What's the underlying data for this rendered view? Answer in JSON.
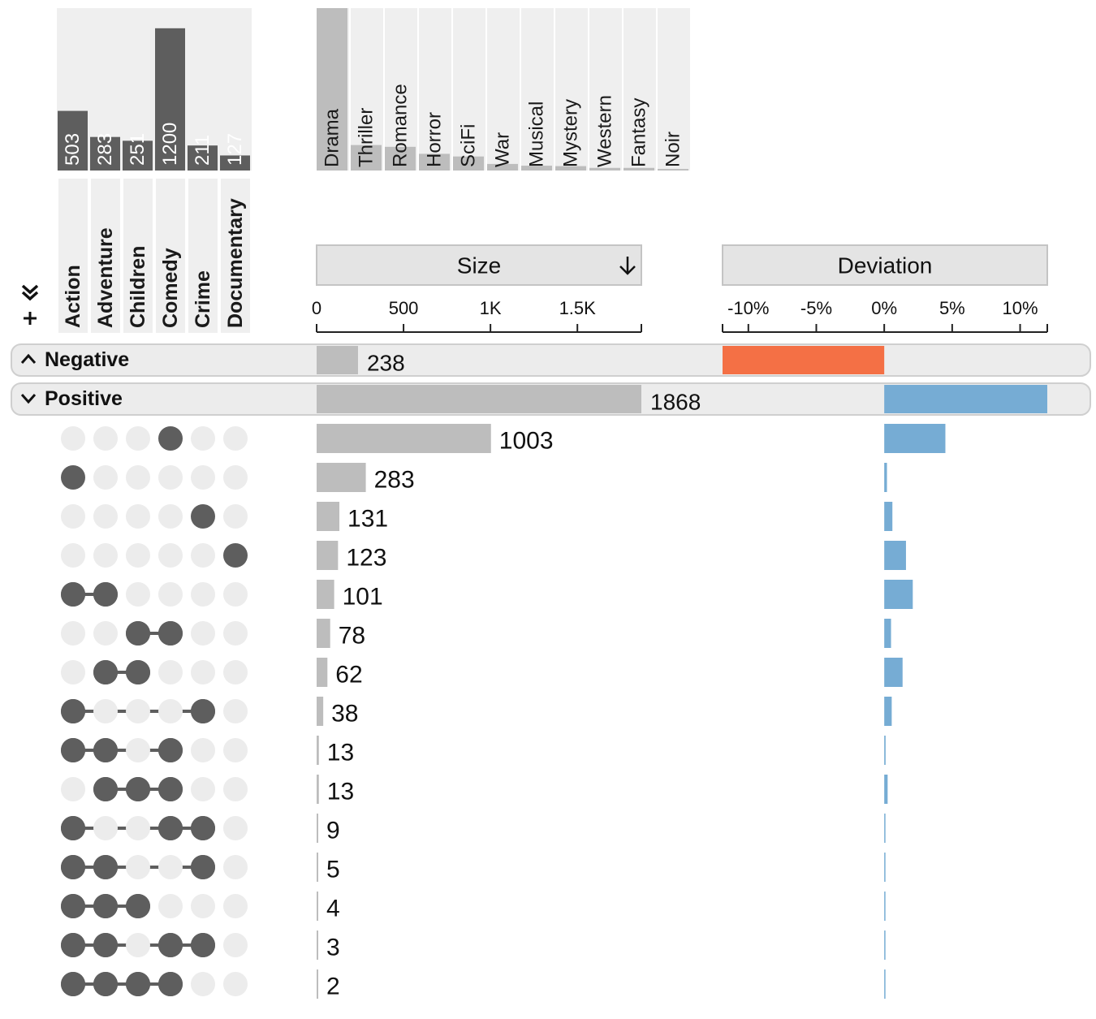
{
  "chart_data": {
    "type": "upset",
    "sets": {
      "names": [
        "Action",
        "Adventure",
        "Children",
        "Comedy",
        "Crime",
        "Documentary"
      ],
      "sizes": [
        503,
        283,
        251,
        1200,
        211,
        127
      ],
      "ylim": [
        0,
        1370
      ]
    },
    "unused_sets": {
      "names": [
        "Drama",
        "Thriller",
        "Romance",
        "Horror",
        "SciFi",
        "War",
        "Musical",
        "Mystery",
        "Western",
        "Fantasy",
        "Noir"
      ],
      "sizes": [
        1850,
        290,
        270,
        190,
        160,
        75,
        55,
        50,
        30,
        30,
        18
      ],
      "ylim": [
        0,
        1850
      ]
    },
    "columns": {
      "size": {
        "label": "Size",
        "sort_icon": "arrow-down-icon",
        "ticks": [
          "0",
          "500",
          "1K",
          "1.5K"
        ],
        "tick_values": [
          0,
          500,
          1000,
          1500
        ],
        "xlim": [
          0,
          1868
        ]
      },
      "deviation": {
        "label": "Deviation",
        "ticks": [
          "-10%",
          "-5%",
          "0%",
          "5%",
          "10%"
        ],
        "tick_values": [
          -10,
          -5,
          0,
          5,
          10
        ],
        "xlim": [
          -11.9,
          12.0
        ]
      }
    },
    "aggregates": [
      {
        "label": "Negative",
        "size": 238,
        "size_label": "238",
        "deviation": -11.9,
        "expanded": false,
        "icon": "chevron-up-icon"
      },
      {
        "label": "Positive",
        "size": 1868,
        "size_label": "1868",
        "deviation": 12.0,
        "expanded": true,
        "icon": "chevron-down-icon"
      }
    ],
    "intersections": [
      {
        "sets": [
          3
        ],
        "size": 1003,
        "label": "1003",
        "deviation": 4.5
      },
      {
        "sets": [
          0
        ],
        "size": 283,
        "label": "283",
        "deviation": 0.2
      },
      {
        "sets": [
          4
        ],
        "size": 131,
        "label": "131",
        "deviation": 0.6
      },
      {
        "sets": [
          5
        ],
        "size": 123,
        "label": "123",
        "deviation": 1.6
      },
      {
        "sets": [
          0,
          1
        ],
        "size": 101,
        "label": "101",
        "deviation": 2.1
      },
      {
        "sets": [
          2,
          3
        ],
        "size": 78,
        "label": "78",
        "deviation": 0.5
      },
      {
        "sets": [
          1,
          2
        ],
        "size": 62,
        "label": "62",
        "deviation": 1.35
      },
      {
        "sets": [
          0,
          4
        ],
        "size": 38,
        "label": "38",
        "deviation": 0.55
      },
      {
        "sets": [
          0,
          1,
          3
        ],
        "size": 13,
        "label": "13",
        "deviation": 0.1
      },
      {
        "sets": [
          1,
          2,
          3
        ],
        "size": 13,
        "label": "13",
        "deviation": 0.25
      },
      {
        "sets": [
          0,
          3,
          4
        ],
        "size": 9,
        "label": "9",
        "deviation": 0.05
      },
      {
        "sets": [
          0,
          1,
          4
        ],
        "size": 5,
        "label": "5",
        "deviation": 0.05
      },
      {
        "sets": [
          0,
          1,
          2
        ],
        "size": 4,
        "label": "4",
        "deviation": 0.05
      },
      {
        "sets": [
          0,
          1,
          3,
          4
        ],
        "size": 3,
        "label": "3",
        "deviation": 0.05
      },
      {
        "sets": [
          0,
          1,
          2,
          3
        ],
        "size": 2,
        "label": "2",
        "deviation": 0.05
      }
    ],
    "colors": {
      "set_bar": "#5e5e5e",
      "unused_bar": "#bdbdbd",
      "panel_bg": "#efefef",
      "size_bar": "#bdbdbd",
      "dot_on": "#5e5e5e",
      "dot_off": "#ececec",
      "positive": "#76acd4",
      "negative": "#f47045"
    }
  },
  "toolbar": {
    "add_icon": "plus-icon",
    "expand_icon": "double-chevron-right-icon"
  }
}
